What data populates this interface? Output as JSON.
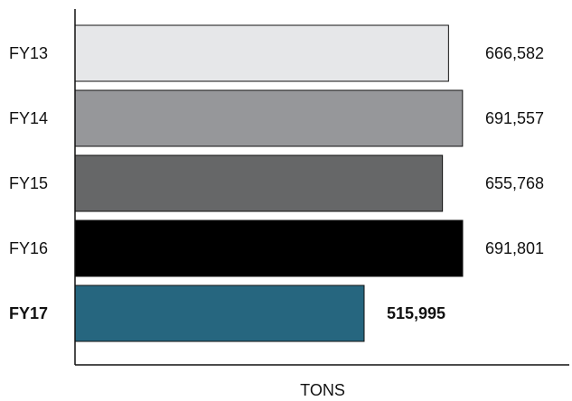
{
  "chart_data": {
    "type": "bar",
    "orientation": "horizontal",
    "categories": [
      "FY13",
      "FY14",
      "FY15",
      "FY16",
      "FY17"
    ],
    "values": [
      666582,
      691557,
      655768,
      691801,
      515995
    ],
    "value_labels": [
      "666,582",
      "691,557",
      "655,768",
      "691,801",
      "515,995"
    ],
    "bar_colors": [
      "#e6e7e9",
      "#96979a",
      "#666768",
      "#000000",
      "#26667f"
    ],
    "highlight": {
      "category": "FY17",
      "color": "#26667f",
      "bold": true
    },
    "xlabel": "TONS",
    "ylabel": "",
    "title": "",
    "xlim": [
      0,
      691801
    ],
    "grid": false,
    "legend": "none"
  }
}
